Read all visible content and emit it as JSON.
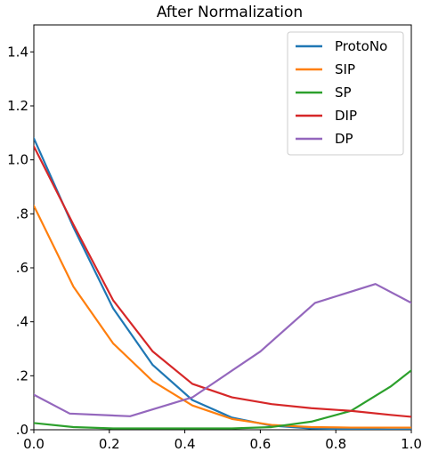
{
  "chart_data": {
    "type": "line",
    "title": "After Normalization",
    "xlabel": "",
    "ylabel": "",
    "xlim": [
      0.0,
      1.0
    ],
    "ylim": [
      0.0,
      1.5
    ],
    "xticks": [
      0.0,
      0.2,
      0.4,
      0.6,
      0.8,
      1.0
    ],
    "xtick_labels": [
      "0.0",
      "0.2",
      "0.4",
      "0.6",
      "0.8",
      "1.0"
    ],
    "yticks": [
      0.0,
      0.2,
      0.4,
      0.6,
      0.8,
      1.0,
      1.2,
      1.4
    ],
    "ytick_labels": [
      ".0",
      ".2",
      ".4",
      ".6",
      ".8",
      "1.0",
      "1.2",
      "1.4"
    ],
    "grid": false,
    "legend_position": "top-right",
    "series": [
      {
        "name": "ProtoNo",
        "color": "#1f77b4",
        "x": [
          0.0,
          0.105,
          0.21,
          0.315,
          0.42,
          0.525,
          0.63,
          0.735,
          0.84,
          0.945,
          1.0
        ],
        "y": [
          1.08,
          0.75,
          0.45,
          0.24,
          0.11,
          0.045,
          0.015,
          0.005,
          0.002,
          0.001,
          0.001
        ]
      },
      {
        "name": "SIP",
        "color": "#ff7f0e",
        "x": [
          0.0,
          0.105,
          0.21,
          0.315,
          0.42,
          0.525,
          0.63,
          0.735,
          0.84,
          0.945,
          1.0
        ],
        "y": [
          0.83,
          0.53,
          0.32,
          0.18,
          0.09,
          0.04,
          0.018,
          0.01,
          0.008,
          0.008,
          0.008
        ]
      },
      {
        "name": "SP",
        "color": "#2ca02c",
        "x": [
          0.0,
          0.105,
          0.21,
          0.315,
          0.42,
          0.525,
          0.63,
          0.735,
          0.84,
          0.945,
          1.0
        ],
        "y": [
          0.025,
          0.01,
          0.005,
          0.005,
          0.005,
          0.005,
          0.01,
          0.03,
          0.07,
          0.16,
          0.22
        ]
      },
      {
        "name": "DIP",
        "color": "#d62728",
        "x": [
          0.0,
          0.105,
          0.21,
          0.315,
          0.42,
          0.525,
          0.63,
          0.735,
          0.84,
          0.945,
          1.0
        ],
        "y": [
          1.05,
          0.76,
          0.48,
          0.29,
          0.17,
          0.12,
          0.095,
          0.08,
          0.07,
          0.055,
          0.048
        ]
      },
      {
        "name": "DP",
        "color": "#9467bd",
        "x": [
          0.0,
          0.095,
          0.255,
          0.42,
          0.6,
          0.745,
          0.905,
          1.0
        ],
        "y": [
          0.13,
          0.06,
          0.05,
          0.12,
          0.29,
          0.47,
          0.54,
          0.47
        ]
      }
    ]
  }
}
